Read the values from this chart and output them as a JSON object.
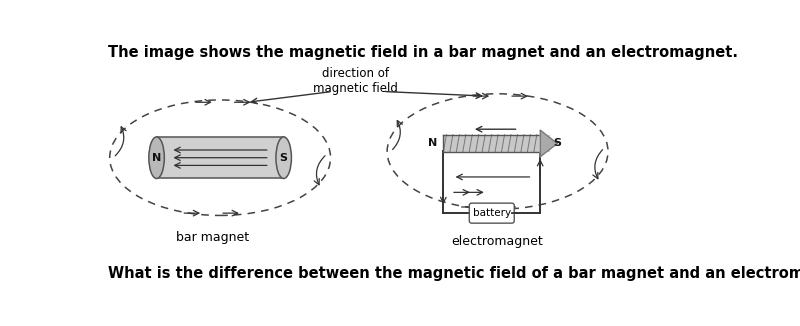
{
  "title": "The image shows the magnetic field in a bar magnet and an electromagnet.",
  "footer": "What is the difference between the magnetic field of a bar magnet and an electromagnet?",
  "title_fontsize": 10.5,
  "footer_fontsize": 10.5,
  "bg_color": "#ffffff",
  "text_color": "#000000",
  "label_bar_magnet": "bar magnet",
  "label_electromagnet": "electromagnet",
  "label_battery": "battery",
  "label_N1": "N",
  "label_S1": "S",
  "label_N2": "N",
  "label_S2": "S",
  "label_direction": "direction of\nmagnetic field"
}
